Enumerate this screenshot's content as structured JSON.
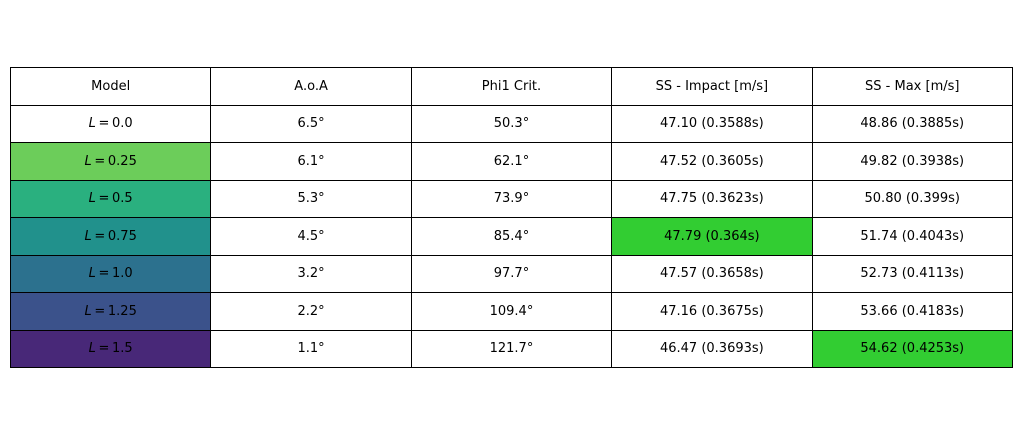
{
  "chart_data": {
    "type": "table",
    "columns": [
      "Model",
      "A.o.A",
      "Phi1 Crit.",
      "SS - Impact [m/s]",
      "SS - Max [m/s]"
    ],
    "rows": [
      {
        "model_var": "L",
        "model_value": "0.0",
        "aoa": "6.5°",
        "phi1": "50.3°",
        "ss_impact": "47.10 (0.3588s)",
        "ss_max": "48.86 (0.3885s)"
      },
      {
        "model_var": "L",
        "model_value": "0.25",
        "aoa": "6.1°",
        "phi1": "62.1°",
        "ss_impact": "47.52 (0.3605s)",
        "ss_max": "49.82 (0.3938s)"
      },
      {
        "model_var": "L",
        "model_value": "0.5",
        "aoa": "5.3°",
        "phi1": "73.9°",
        "ss_impact": "47.75 (0.3623s)",
        "ss_max": "50.80 (0.399s)"
      },
      {
        "model_var": "L",
        "model_value": "0.75",
        "aoa": "4.5°",
        "phi1": "85.4°",
        "ss_impact": "47.79 (0.364s)",
        "ss_max": "51.74 (0.4043s)"
      },
      {
        "model_var": "L",
        "model_value": "1.0",
        "aoa": "3.2°",
        "phi1": "97.7°",
        "ss_impact": "47.57 (0.3658s)",
        "ss_max": "52.73 (0.4113s)"
      },
      {
        "model_var": "L",
        "model_value": "1.25",
        "aoa": "2.2°",
        "phi1": "109.4°",
        "ss_impact": "47.16 (0.3675s)",
        "ss_max": "53.66 (0.4183s)"
      },
      {
        "model_var": "L",
        "model_value": "1.5",
        "aoa": "1.1°",
        "phi1": "121.7°",
        "ss_impact": "46.47 (0.3693s)",
        "ss_max": "54.62 (0.4253s)"
      }
    ],
    "model_cell_colors": [
      "#ffffff",
      "#6ccd5a",
      "#2ab07f",
      "#21918c",
      "#2c718e",
      "#3b528b",
      "#482878"
    ],
    "highlight_color": "#32cd32",
    "highlights": [
      {
        "row": 3,
        "column": "ss_impact"
      },
      {
        "row": 6,
        "column": "ss_max"
      }
    ]
  }
}
